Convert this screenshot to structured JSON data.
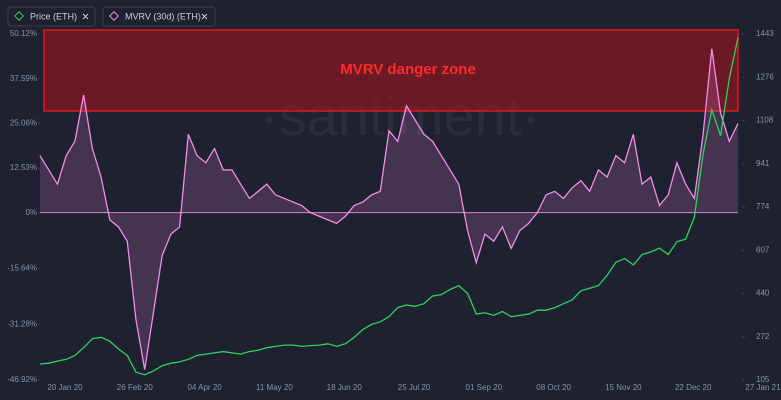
{
  "chart_data": {
    "type": "line",
    "legend": [
      "Price (ETH)",
      "MVRV (30d) (ETH)"
    ],
    "annotation": "MVRV danger zone",
    "watermark": "·santiment·",
    "categories": [
      "20 Jan 20",
      null,
      null,
      null,
      null,
      null,
      null,
      null,
      "26 Feb 20",
      null,
      null,
      null,
      null,
      null,
      null,
      null,
      "04 Apr 20",
      null,
      null,
      null,
      null,
      null,
      null,
      null,
      "11 May 20",
      null,
      null,
      null,
      null,
      null,
      null,
      null,
      "18 Jun 20",
      null,
      null,
      null,
      null,
      null,
      null,
      null,
      "25 Jul 20",
      null,
      null,
      null,
      null,
      null,
      null,
      null,
      "01 Sep 20",
      null,
      null,
      null,
      null,
      null,
      null,
      null,
      "08 Oct 20",
      null,
      null,
      null,
      null,
      null,
      null,
      null,
      "15 Nov 20",
      null,
      null,
      null,
      null,
      null,
      null,
      null,
      "22 Dec 20",
      null,
      null,
      null,
      null,
      null,
      null,
      null,
      "27 Jan 21"
    ],
    "series": [
      {
        "name": "Price (ETH)",
        "color": "#2fd05a",
        "axis": "y2",
        "values": [
          167,
          170,
          178,
          185,
          200,
          230,
          265,
          270,
          255,
          225,
          200,
          135,
          125,
          140,
          160,
          170,
          175,
          185,
          200,
          205,
          210,
          215,
          210,
          205,
          215,
          220,
          230,
          235,
          240,
          240,
          235,
          238,
          240,
          245,
          235,
          245,
          270,
          300,
          320,
          330,
          350,
          385,
          395,
          390,
          400,
          430,
          435,
          455,
          470,
          440,
          360,
          365,
          355,
          370,
          350,
          355,
          360,
          375,
          375,
          385,
          400,
          415,
          450,
          460,
          470,
          510,
          560,
          575,
          550,
          590,
          600,
          615,
          590,
          640,
          650,
          735,
          980,
          1150,
          1050,
          1270,
          1430
        ]
      },
      {
        "name": "MVRV (30d) (ETH)",
        "color": "#f48be6",
        "axis": "y",
        "values": [
          16,
          12,
          8,
          16,
          20,
          33,
          18,
          10,
          -2,
          -4,
          -8,
          -30,
          -44,
          -28,
          -12,
          -6,
          -4,
          22,
          16,
          14,
          18,
          12,
          12,
          8,
          4,
          6,
          8,
          5,
          4,
          3,
          2,
          0,
          -1,
          -2,
          -3,
          -1,
          2,
          3,
          5,
          6,
          23,
          20,
          30,
          26,
          22,
          20,
          16,
          12,
          8,
          -5,
          -14,
          -6,
          -8,
          -4,
          -10,
          -5,
          -3,
          0,
          5,
          6,
          4,
          7,
          9,
          6,
          12,
          10,
          16,
          14,
          22,
          8,
          10,
          2,
          5,
          14,
          8,
          4,
          22,
          46,
          28,
          20,
          25
        ]
      }
    ],
    "ylim": [
      -46.92,
      50.12
    ],
    "yticks": [
      {
        "value": 50.12,
        "label": "50.12%"
      },
      {
        "value": 37.59,
        "label": "37.59%"
      },
      {
        "value": 25.06,
        "label": "25.06%"
      },
      {
        "value": 12.53,
        "label": "12.53%"
      },
      {
        "value": 0,
        "label": "0%"
      },
      {
        "value": -15.64,
        "label": "-15.64%"
      },
      {
        "value": -31.28,
        "label": "-31.28%"
      },
      {
        "value": -46.92,
        "label": "-46.92%"
      }
    ],
    "y2lim": [
      105,
      1443
    ],
    "y2ticks": [
      1443,
      1276,
      1108,
      941,
      774,
      607,
      440,
      272,
      105
    ]
  }
}
